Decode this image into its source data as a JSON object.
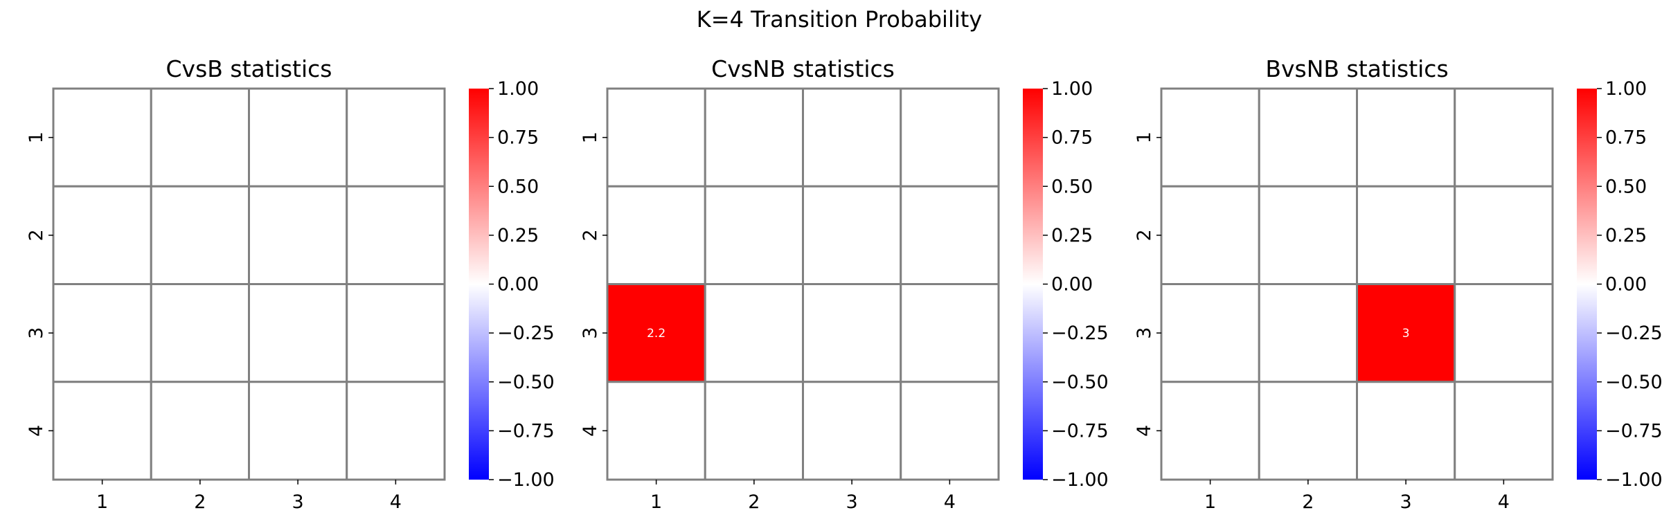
{
  "figure": {
    "title": "K=4 Transition Probability"
  },
  "chart_data": [
    {
      "type": "heatmap",
      "title": "CvsB statistics",
      "x": [
        "1",
        "2",
        "3",
        "4"
      ],
      "y": [
        "1",
        "2",
        "3",
        "4"
      ],
      "values": [
        [
          0,
          0,
          0,
          0
        ],
        [
          0,
          0,
          0,
          0
        ],
        [
          0,
          0,
          0,
          0
        ],
        [
          0,
          0,
          0,
          0
        ]
      ],
      "annotations": [],
      "colorbar": {
        "range": [
          -1,
          1
        ],
        "ticks": [
          "1.00",
          "0.75",
          "0.50",
          "0.25",
          "0.00",
          "−0.25",
          "−0.50",
          "−0.75",
          "−1.00"
        ],
        "colors": [
          "#ff0000",
          "#ffffff",
          "#0000ff"
        ]
      },
      "grid_color": "#808080"
    },
    {
      "type": "heatmap",
      "title": "CvsNB statistics",
      "x": [
        "1",
        "2",
        "3",
        "4"
      ],
      "y": [
        "1",
        "2",
        "3",
        "4"
      ],
      "values": [
        [
          0,
          0,
          0,
          0
        ],
        [
          0,
          0,
          0,
          0
        ],
        [
          2.2,
          0,
          0,
          0
        ],
        [
          0,
          0,
          0,
          0
        ]
      ],
      "annotations": [
        {
          "row": 2,
          "col": 0,
          "text": "2.2"
        }
      ],
      "colorbar": {
        "range": [
          -1,
          1
        ],
        "ticks": [
          "1.00",
          "0.75",
          "0.50",
          "0.25",
          "0.00",
          "−0.25",
          "−0.50",
          "−0.75",
          "−1.00"
        ],
        "colors": [
          "#ff0000",
          "#ffffff",
          "#0000ff"
        ]
      },
      "grid_color": "#808080"
    },
    {
      "type": "heatmap",
      "title": "BvsNB statistics",
      "x": [
        "1",
        "2",
        "3",
        "4"
      ],
      "y": [
        "1",
        "2",
        "3",
        "4"
      ],
      "values": [
        [
          0,
          0,
          0,
          0
        ],
        [
          0,
          0,
          0,
          0
        ],
        [
          0,
          0,
          3,
          0
        ],
        [
          0,
          0,
          0,
          0
        ]
      ],
      "annotations": [
        {
          "row": 2,
          "col": 2,
          "text": "3"
        }
      ],
      "colorbar": {
        "range": [
          -1,
          1
        ],
        "ticks": [
          "1.00",
          "0.75",
          "0.50",
          "0.25",
          "0.00",
          "−0.25",
          "−0.50",
          "−0.75",
          "−1.00"
        ],
        "colors": [
          "#ff0000",
          "#ffffff",
          "#0000ff"
        ]
      },
      "grid_color": "#808080"
    }
  ]
}
